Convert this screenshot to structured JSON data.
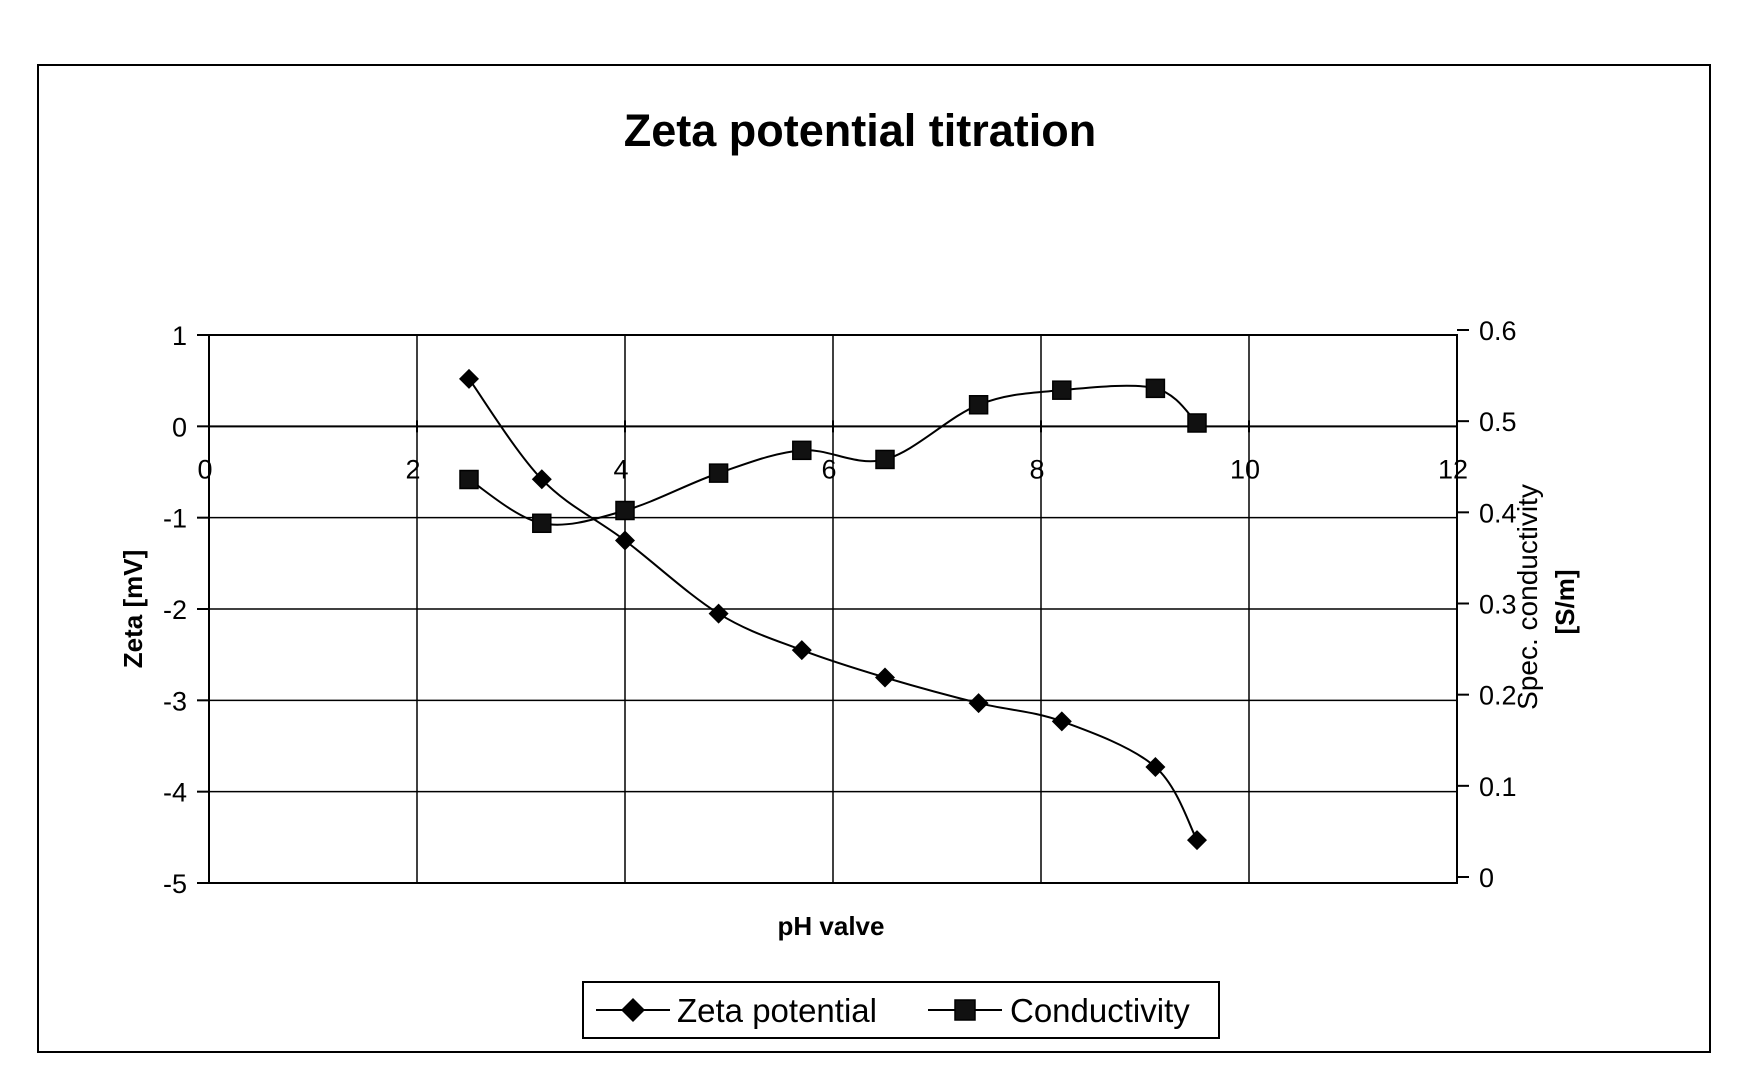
{
  "chart_data": {
    "type": "line",
    "title": "Zeta potential titration",
    "xlabel": "pH valve",
    "ylabel": "Zeta [mV]",
    "y2label_line1": "Spec. conductivity",
    "y2label_line2": "[S/m]",
    "xlim": [
      0,
      12
    ],
    "ylim": [
      -5,
      1
    ],
    "y2lim": [
      0,
      0.6
    ],
    "x_ticks": [
      0,
      2,
      4,
      6,
      8,
      10,
      12
    ],
    "y_ticks": [
      1,
      0,
      -1,
      -2,
      -3,
      -4,
      -5
    ],
    "y2_ticks": [
      0.6,
      0.5,
      0.4,
      0.3,
      0.2,
      0.1,
      0
    ],
    "grid": true,
    "legend_position": "bottom-center",
    "series": [
      {
        "name": "Zeta potential",
        "axis": "left",
        "marker": "diamond",
        "x": [
          2.5,
          3.2,
          4.0,
          4.9,
          5.7,
          6.5,
          7.4,
          8.2,
          9.1,
          9.5
        ],
        "y": [
          0.52,
          -0.58,
          -1.25,
          -2.05,
          -2.45,
          -2.75,
          -3.03,
          -3.23,
          -3.73,
          -4.53
        ]
      },
      {
        "name": "Conductivity",
        "axis": "right",
        "marker": "square",
        "x": [
          2.5,
          3.2,
          4.0,
          4.9,
          5.7,
          6.5,
          7.4,
          8.2,
          9.1,
          9.5
        ],
        "y": [
          0.436,
          0.388,
          0.402,
          0.443,
          0.468,
          0.458,
          0.518,
          0.534,
          0.536,
          0.498
        ]
      }
    ]
  }
}
